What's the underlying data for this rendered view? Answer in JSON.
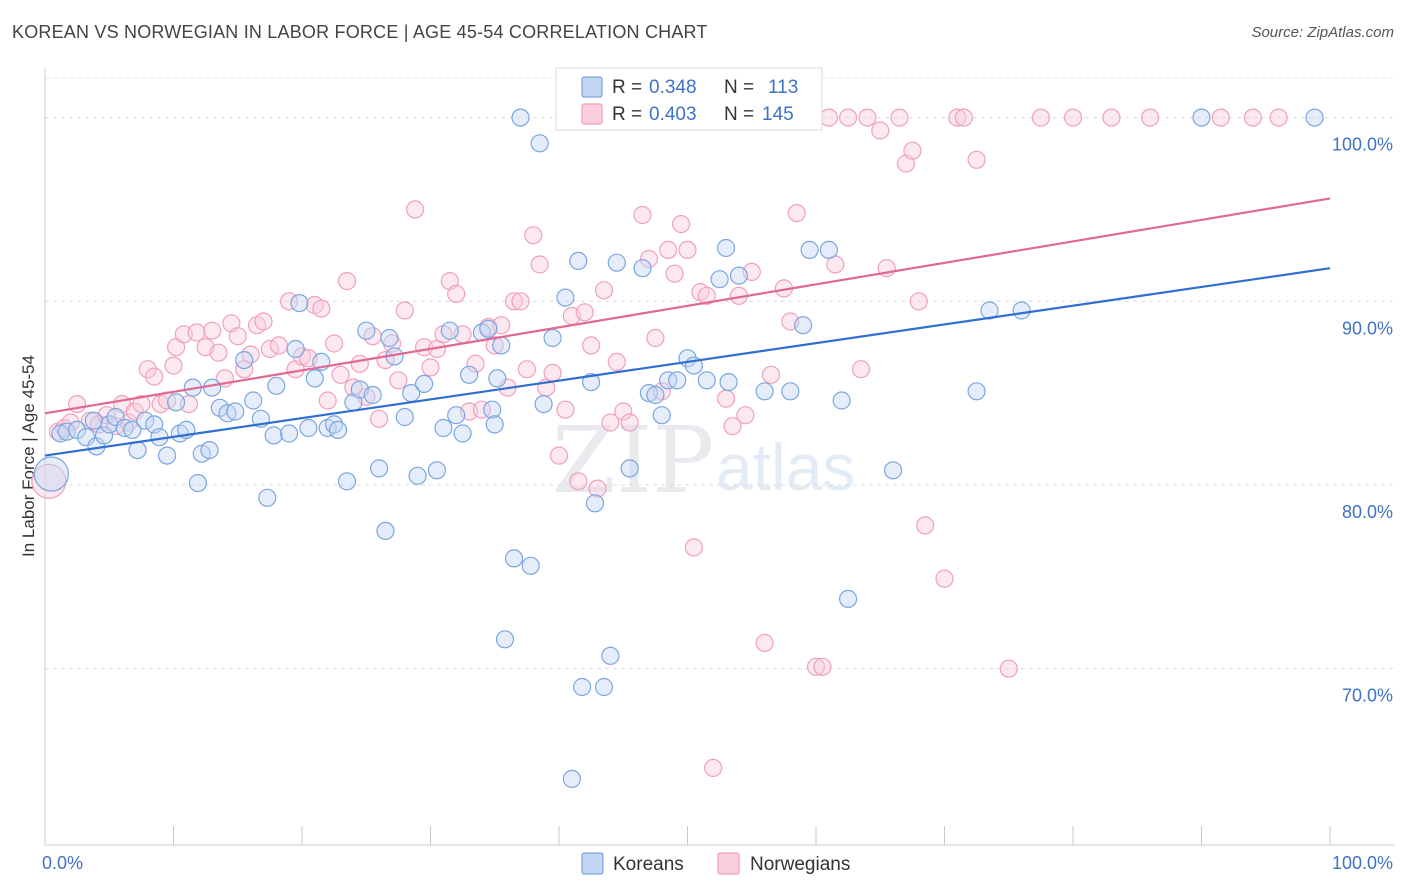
{
  "title": "KOREAN VS NORWEGIAN IN LABOR FORCE | AGE 45-54 CORRELATION CHART",
  "source": "Source: ZipAtlas.com",
  "watermark": {
    "zip": "ZIP",
    "atlas": "atlas"
  },
  "colors": {
    "koreans": "#7ba6e0",
    "koreans_line": "#2f6fd1",
    "norwegians": "#f0a0bd",
    "norwegians_line": "#e06894",
    "tick_text": "#3f72c4"
  },
  "legend_top": [
    {
      "series": "Koreans",
      "r_label": "R =",
      "r_value": "0.348",
      "n_label": "N =",
      "n_value": "113"
    },
    {
      "series": "Norwegians",
      "r_label": "R =",
      "r_value": "0.403",
      "n_label": "N =",
      "n_value": "145"
    }
  ],
  "legend_bottom": [
    "Koreans",
    "Norwegians"
  ],
  "chart_data": {
    "type": "scatter",
    "title": "KOREAN VS NORWEGIAN IN LABOR FORCE | AGE 45-54 CORRELATION CHART",
    "xlabel": "",
    "ylabel": "In Labor Force | Age 45-54",
    "xlim": [
      0,
      100
    ],
    "ylim": [
      60.4,
      102.7
    ],
    "x_tick_labels": [
      "0.0%",
      "100.0%"
    ],
    "y_tick_labels": [
      "100.0%",
      "90.0%",
      "80.0%",
      "70.0%"
    ],
    "y_ticks": [
      100,
      90,
      80,
      70
    ],
    "grid": true,
    "grid_style": "dashed horizontal",
    "legend_position": "top-center and bottom-center",
    "series": [
      {
        "name": "Koreans",
        "r": 0.348,
        "n": 113,
        "trend": {
          "x": [
            0,
            100
          ],
          "y": [
            81.6,
            91.8
          ]
        },
        "points": [
          [
            0.5,
            80.6
          ],
          [
            1.2,
            82.8
          ],
          [
            1.7,
            82.9
          ],
          [
            2.5,
            83.0
          ],
          [
            3.2,
            82.6
          ],
          [
            3.8,
            83.5
          ],
          [
            4.0,
            82.1
          ],
          [
            4.6,
            82.7
          ],
          [
            5.0,
            83.3
          ],
          [
            5.5,
            83.7
          ],
          [
            6.2,
            83.1
          ],
          [
            6.8,
            83.0
          ],
          [
            7.2,
            81.9
          ],
          [
            7.8,
            83.5
          ],
          [
            8.5,
            83.3
          ],
          [
            8.9,
            82.6
          ],
          [
            9.5,
            81.6
          ],
          [
            10.2,
            84.5
          ],
          [
            10.5,
            82.8
          ],
          [
            11.0,
            83.0
          ],
          [
            11.5,
            85.3
          ],
          [
            11.9,
            80.1
          ],
          [
            12.2,
            81.7
          ],
          [
            12.8,
            81.9
          ],
          [
            13.0,
            85.3
          ],
          [
            13.6,
            84.2
          ],
          [
            14.2,
            83.9
          ],
          [
            14.8,
            84.0
          ],
          [
            15.5,
            86.8
          ],
          [
            16.2,
            84.6
          ],
          [
            16.8,
            83.6
          ],
          [
            17.3,
            79.3
          ],
          [
            17.8,
            82.7
          ],
          [
            18.0,
            85.4
          ],
          [
            19.0,
            82.8
          ],
          [
            19.5,
            87.4
          ],
          [
            19.8,
            89.9
          ],
          [
            20.5,
            83.1
          ],
          [
            21.0,
            85.8
          ],
          [
            21.5,
            86.7
          ],
          [
            22.0,
            83.1
          ],
          [
            22.5,
            83.3
          ],
          [
            22.8,
            83.0
          ],
          [
            23.5,
            80.2
          ],
          [
            24.0,
            84.5
          ],
          [
            24.5,
            85.2
          ],
          [
            25.0,
            88.4
          ],
          [
            25.5,
            84.9
          ],
          [
            26.0,
            80.9
          ],
          [
            26.5,
            77.5
          ],
          [
            26.8,
            88.0
          ],
          [
            27.2,
            87.0
          ],
          [
            28.0,
            83.7
          ],
          [
            28.5,
            85.0
          ],
          [
            29.0,
            80.5
          ],
          [
            29.5,
            85.5
          ],
          [
            30.5,
            80.8
          ],
          [
            31.0,
            83.1
          ],
          [
            31.5,
            88.4
          ],
          [
            32.0,
            83.8
          ],
          [
            32.5,
            82.8
          ],
          [
            33.0,
            86.0
          ],
          [
            34.0,
            88.3
          ],
          [
            34.5,
            88.5
          ],
          [
            34.8,
            84.1
          ],
          [
            35.2,
            85.8
          ],
          [
            35.5,
            87.6
          ],
          [
            35.8,
            71.6
          ],
          [
            35.0,
            83.3
          ],
          [
            36.5,
            76.0
          ],
          [
            37.0,
            100.0
          ],
          [
            37.8,
            75.6
          ],
          [
            38.5,
            98.6
          ],
          [
            38.8,
            84.4
          ],
          [
            39.5,
            88.0
          ],
          [
            40.5,
            90.2
          ],
          [
            41.0,
            64.0
          ],
          [
            41.5,
            92.2
          ],
          [
            41.8,
            69.0
          ],
          [
            42.5,
            85.6
          ],
          [
            42.8,
            79.0
          ],
          [
            43.5,
            69.0
          ],
          [
            44.0,
            70.7
          ],
          [
            44.5,
            92.1
          ],
          [
            45.5,
            80.9
          ],
          [
            46.5,
            91.8
          ],
          [
            47.0,
            85.0
          ],
          [
            47.5,
            84.9
          ],
          [
            48.0,
            83.8
          ],
          [
            48.5,
            85.7
          ],
          [
            49.2,
            85.7
          ],
          [
            50.0,
            86.9
          ],
          [
            50.5,
            86.5
          ],
          [
            51.5,
            85.7
          ],
          [
            52.5,
            91.2
          ],
          [
            53.0,
            92.9
          ],
          [
            53.2,
            85.6
          ],
          [
            54.0,
            91.4
          ],
          [
            56.0,
            85.1
          ],
          [
            58.0,
            85.1
          ],
          [
            59.0,
            88.7
          ],
          [
            59.5,
            92.8
          ],
          [
            61.0,
            92.8
          ],
          [
            62.0,
            84.6
          ],
          [
            62.5,
            73.8
          ],
          [
            66.0,
            80.8
          ],
          [
            72.5,
            85.1
          ],
          [
            73.5,
            89.5
          ],
          [
            76.0,
            89.5
          ],
          [
            90.0,
            100.0
          ],
          [
            98.8,
            100.0
          ]
        ]
      },
      {
        "name": "Norwegians",
        "r": 0.403,
        "n": 145,
        "trend": {
          "x": [
            0,
            100
          ],
          "y": [
            83.9,
            95.6
          ]
        },
        "points": [
          [
            0.3,
            80.2
          ],
          [
            1.0,
            82.9
          ],
          [
            1.5,
            83.1
          ],
          [
            2.0,
            83.4
          ],
          [
            2.5,
            84.4
          ],
          [
            3.5,
            83.5
          ],
          [
            4.2,
            83.3
          ],
          [
            4.8,
            83.8
          ],
          [
            5.5,
            83.2
          ],
          [
            6.0,
            84.4
          ],
          [
            6.5,
            83.4
          ],
          [
            7.0,
            84.0
          ],
          [
            7.5,
            84.4
          ],
          [
            8.0,
            86.3
          ],
          [
            8.5,
            85.9
          ],
          [
            9.0,
            84.4
          ],
          [
            9.5,
            84.6
          ],
          [
            10.0,
            86.5
          ],
          [
            10.2,
            87.5
          ],
          [
            10.8,
            88.2
          ],
          [
            11.2,
            84.4
          ],
          [
            11.8,
            88.3
          ],
          [
            12.5,
            87.5
          ],
          [
            13.0,
            88.4
          ],
          [
            13.5,
            87.2
          ],
          [
            14.0,
            85.8
          ],
          [
            14.5,
            88.8
          ],
          [
            15.0,
            88.1
          ],
          [
            15.5,
            86.3
          ],
          [
            16.0,
            87.1
          ],
          [
            16.5,
            88.7
          ],
          [
            17.0,
            88.9
          ],
          [
            17.5,
            87.4
          ],
          [
            18.2,
            87.6
          ],
          [
            19.0,
            90.0
          ],
          [
            19.5,
            86.3
          ],
          [
            20.0,
            87.0
          ],
          [
            20.5,
            86.9
          ],
          [
            21.0,
            89.8
          ],
          [
            21.5,
            89.6
          ],
          [
            22.0,
            84.6
          ],
          [
            22.5,
            87.7
          ],
          [
            23.0,
            86.0
          ],
          [
            23.5,
            91.1
          ],
          [
            24.0,
            85.3
          ],
          [
            24.5,
            86.6
          ],
          [
            25.0,
            84.8
          ],
          [
            25.5,
            88.1
          ],
          [
            26.0,
            83.6
          ],
          [
            26.5,
            86.8
          ],
          [
            27.0,
            87.7
          ],
          [
            27.5,
            85.7
          ],
          [
            28.0,
            89.5
          ],
          [
            28.8,
            95.0
          ],
          [
            29.5,
            87.5
          ],
          [
            30.0,
            86.4
          ],
          [
            30.5,
            87.4
          ],
          [
            31.0,
            88.2
          ],
          [
            31.5,
            91.1
          ],
          [
            32.0,
            90.4
          ],
          [
            32.5,
            88.2
          ],
          [
            33.0,
            84.0
          ],
          [
            33.5,
            86.6
          ],
          [
            34.0,
            84.1
          ],
          [
            34.5,
            88.6
          ],
          [
            35.0,
            87.6
          ],
          [
            35.5,
            88.7
          ],
          [
            36.0,
            85.3
          ],
          [
            36.5,
            90.0
          ],
          [
            37.0,
            90.0
          ],
          [
            37.5,
            86.3
          ],
          [
            38.0,
            93.6
          ],
          [
            38.5,
            92.0
          ],
          [
            39.0,
            85.3
          ],
          [
            39.5,
            86.1
          ],
          [
            40.0,
            81.6
          ],
          [
            40.5,
            84.1
          ],
          [
            41.0,
            89.2
          ],
          [
            41.5,
            80.2
          ],
          [
            42.0,
            89.4
          ],
          [
            42.5,
            87.6
          ],
          [
            43.0,
            79.8
          ],
          [
            43.5,
            90.6
          ],
          [
            44.0,
            83.4
          ],
          [
            44.5,
            86.7
          ],
          [
            45.0,
            84.0
          ],
          [
            45.5,
            83.4
          ],
          [
            46.5,
            94.7
          ],
          [
            47.0,
            92.3
          ],
          [
            47.5,
            88.0
          ],
          [
            48.0,
            85.1
          ],
          [
            48.5,
            92.8
          ],
          [
            49.0,
            91.5
          ],
          [
            49.5,
            94.2
          ],
          [
            50.0,
            92.8
          ],
          [
            50.5,
            76.6
          ],
          [
            51.0,
            90.5
          ],
          [
            51.5,
            90.3
          ],
          [
            52.0,
            64.6
          ],
          [
            53.0,
            84.7
          ],
          [
            53.5,
            83.2
          ],
          [
            54.0,
            90.3
          ],
          [
            54.5,
            83.8
          ],
          [
            55.0,
            91.6
          ],
          [
            56.0,
            71.4
          ],
          [
            56.5,
            86.0
          ],
          [
            57.5,
            90.7
          ],
          [
            58.0,
            88.9
          ],
          [
            58.5,
            94.8
          ],
          [
            59.5,
            100.0
          ],
          [
            60.0,
            70.1
          ],
          [
            60.5,
            70.1
          ],
          [
            61.0,
            100.0
          ],
          [
            61.5,
            92.0
          ],
          [
            62.5,
            100.0
          ],
          [
            63.5,
            86.3
          ],
          [
            64.0,
            100.0
          ],
          [
            65.0,
            99.3
          ],
          [
            65.5,
            91.8
          ],
          [
            66.5,
            100.0
          ],
          [
            67.0,
            97.5
          ],
          [
            67.5,
            98.2
          ],
          [
            68.0,
            90.0
          ],
          [
            68.5,
            77.8
          ],
          [
            70.0,
            74.9
          ],
          [
            71.0,
            100.0
          ],
          [
            71.5,
            100.0
          ],
          [
            72.5,
            97.7
          ],
          [
            75.0,
            70.0
          ],
          [
            77.5,
            100.0
          ],
          [
            80.0,
            100.0
          ],
          [
            83.0,
            100.0
          ],
          [
            86.0,
            100.0
          ],
          [
            91.5,
            100.0
          ],
          [
            94.0,
            100.0
          ],
          [
            96.0,
            100.0
          ]
        ]
      }
    ]
  }
}
